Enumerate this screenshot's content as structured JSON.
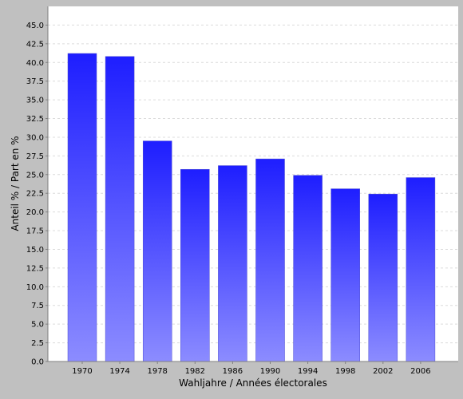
{
  "chart_data": {
    "type": "bar",
    "title": "",
    "xlabel": "Wahljahre / Années électorales",
    "ylabel": "Anteil % / Part en %",
    "categories": [
      "1970",
      "1974",
      "1978",
      "1982",
      "1986",
      "1990",
      "1994",
      "1998",
      "2002",
      "2006"
    ],
    "values": [
      41.2,
      40.8,
      29.5,
      25.7,
      26.2,
      27.1,
      24.9,
      23.1,
      22.4,
      24.6
    ],
    "ylim": [
      0,
      47.5
    ],
    "yticks": [
      "0.0",
      "2.5",
      "5.0",
      "7.5",
      "10.0",
      "12.5",
      "15.0",
      "17.5",
      "20.0",
      "22.5",
      "25.0",
      "27.5",
      "30.0",
      "32.5",
      "35.0",
      "37.5",
      "40.0",
      "42.5",
      "45.0"
    ],
    "grid": true,
    "legend": "none",
    "colors": {
      "background": "#c0c0c0",
      "plot_background": "#ffffff",
      "gridline": "#dcdcdc",
      "bar_top": "#1e1eff",
      "bar_bottom": "#8c8cff"
    }
  }
}
